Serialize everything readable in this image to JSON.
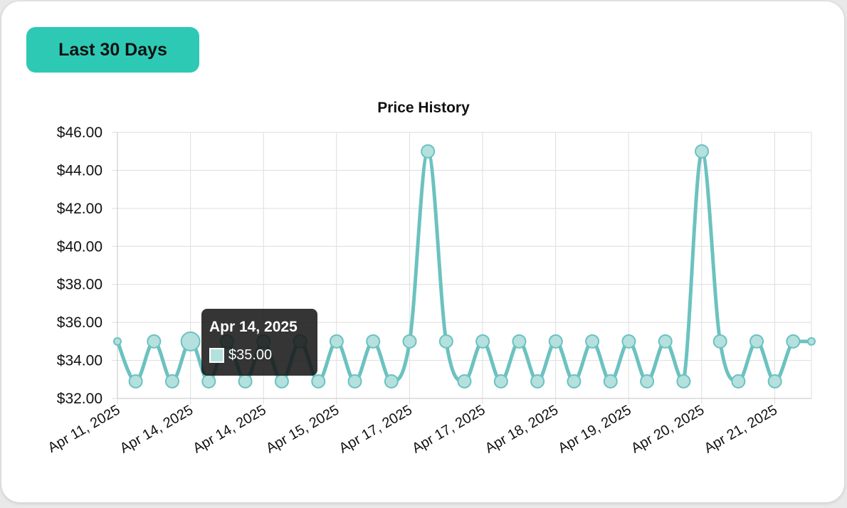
{
  "filter": {
    "label": "Last 30 Days",
    "color": "#2ec9b4"
  },
  "chart_data": {
    "type": "line",
    "title": "Price History",
    "xlabel": "",
    "ylabel": "",
    "ylim": [
      32,
      46
    ],
    "yticks": [
      "$32.00",
      "$34.00",
      "$36.00",
      "$38.00",
      "$40.00",
      "$42.00",
      "$44.00",
      "$46.00"
    ],
    "xticks": [
      "Apr 11, 2025",
      "Apr 14, 2025",
      "Apr 14, 2025",
      "Apr 15, 2025",
      "Apr 17, 2025",
      "Apr 17, 2025",
      "Apr 18, 2025",
      "Apr 19, 2025",
      "Apr 20, 2025",
      "Apr 21, 2025"
    ],
    "grid": true,
    "legend": "none",
    "line_color": "#6cc2c0",
    "point_fill": "#b4e0de",
    "series": [
      {
        "values": [
          35,
          32.9,
          35,
          32.9,
          35,
          32.9,
          35,
          32.9,
          35,
          32.9,
          35,
          32.9,
          35,
          32.9,
          35,
          32.9,
          35,
          45,
          35,
          32.9,
          35,
          32.9,
          35,
          32.9,
          35,
          32.9,
          35,
          32.9,
          35,
          32.9,
          35,
          32.9,
          45,
          35,
          32.9,
          35,
          32.9,
          35,
          35
        ]
      }
    ],
    "tooltip": {
      "title": "Apr 14, 2025",
      "value": "$35.00",
      "point_index": 4
    }
  }
}
